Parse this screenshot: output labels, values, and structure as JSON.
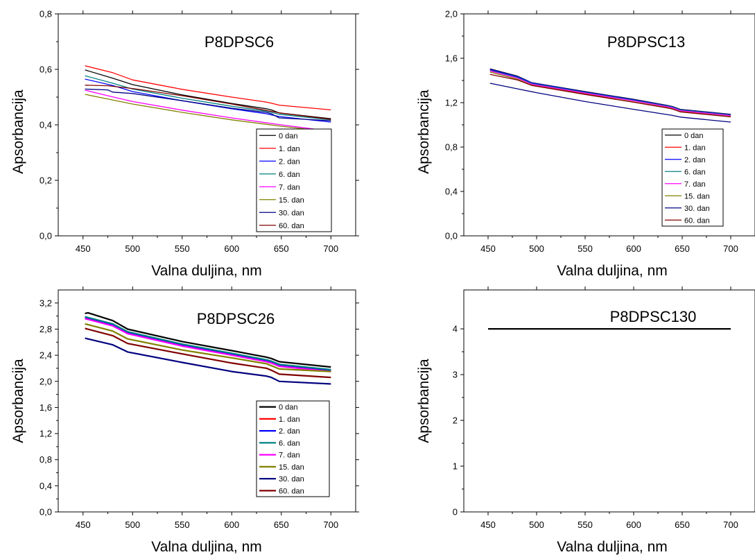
{
  "chart_data": [
    {
      "type": "line",
      "title": "P8DPSC6",
      "xlabel": "Valna duljina, nm",
      "ylabel": "Apsorbancija",
      "xlim": [
        425,
        725
      ],
      "ylim": [
        0,
        0.8
      ],
      "xticks": [
        450,
        500,
        550,
        600,
        650,
        700
      ],
      "yticks": [
        0,
        0.2,
        0.4,
        0.6,
        0.8
      ],
      "ytick_labels": [
        "0,0",
        "0,2",
        "0,4",
        "0,6",
        "0,8"
      ],
      "legend_position": "bottom-right",
      "line_width": 1.3,
      "series": [
        {
          "name": "0 dan",
          "color": "#000000",
          "x": [
            452,
            480,
            500,
            550,
            600,
            635,
            640,
            648,
            700
          ],
          "y": [
            0.598,
            0.568,
            0.545,
            0.508,
            0.477,
            0.458,
            0.454,
            0.443,
            0.422
          ]
        },
        {
          "name": "1. dan",
          "color": "#ff0000",
          "x": [
            452,
            480,
            500,
            550,
            600,
            635,
            640,
            648,
            700
          ],
          "y": [
            0.613,
            0.588,
            0.562,
            0.528,
            0.5,
            0.482,
            0.478,
            0.471,
            0.454
          ]
        },
        {
          "name": "2. dan",
          "color": "#0000ff",
          "x": [
            452,
            480,
            500,
            550,
            600,
            635,
            640,
            648,
            700
          ],
          "y": [
            0.565,
            0.542,
            0.52,
            0.487,
            0.458,
            0.44,
            0.436,
            0.43,
            0.41
          ]
        },
        {
          "name": "6. dan",
          "color": "#008080",
          "x": [
            452,
            480,
            500,
            550,
            600,
            635,
            640,
            648,
            700
          ],
          "y": [
            0.577,
            0.55,
            0.529,
            0.496,
            0.467,
            0.449,
            0.445,
            0.438,
            0.418
          ]
        },
        {
          "name": "7. dan",
          "color": "#ff00ff",
          "x": [
            452,
            475,
            500,
            550,
            600,
            650,
            700
          ],
          "y": [
            0.525,
            0.505,
            0.484,
            0.453,
            0.425,
            0.4,
            0.377
          ]
        },
        {
          "name": "15. dan",
          "color": "#808000",
          "x": [
            452,
            475,
            500,
            550,
            600,
            650,
            700
          ],
          "y": [
            0.51,
            0.493,
            0.475,
            0.445,
            0.418,
            0.395,
            0.375
          ]
        },
        {
          "name": "30. dan",
          "color": "#000080",
          "x": [
            452,
            475,
            480,
            500,
            550,
            600,
            635,
            640,
            648,
            700
          ],
          "y": [
            0.529,
            0.526,
            0.518,
            0.513,
            0.487,
            0.46,
            0.445,
            0.44,
            0.425,
            0.415
          ]
        },
        {
          "name": "60. dan",
          "color": "#800000",
          "x": [
            452,
            475,
            500,
            550,
            600,
            650,
            700
          ],
          "y": [
            0.543,
            0.541,
            0.531,
            0.505,
            0.475,
            0.442,
            0.42
          ]
        }
      ]
    },
    {
      "type": "line",
      "title": "P8DPSC13",
      "xlabel": "Valna duljina, nm",
      "ylabel": "Apsorbancija",
      "xlim": [
        425,
        725
      ],
      "ylim": [
        0,
        2.0
      ],
      "xticks": [
        450,
        500,
        550,
        600,
        650,
        700
      ],
      "yticks": [
        0,
        0.4,
        0.8,
        1.2,
        1.6,
        2.0
      ],
      "ytick_labels": [
        "0,0",
        "0,4",
        "0,8",
        "1,2",
        "1,6",
        "2,0"
      ],
      "legend_position": "bottom-right",
      "line_width": 1.3,
      "series": [
        {
          "name": "0 dan",
          "color": "#000000",
          "x": [
            452,
            480,
            495,
            550,
            600,
            635,
            640,
            648,
            700
          ],
          "y": [
            1.505,
            1.44,
            1.38,
            1.3,
            1.23,
            1.175,
            1.165,
            1.14,
            1.095
          ]
        },
        {
          "name": "1. dan",
          "color": "#ff0000",
          "x": [
            452,
            480,
            495,
            550,
            600,
            635,
            640,
            648,
            700
          ],
          "y": [
            1.495,
            1.425,
            1.365,
            1.28,
            1.205,
            1.155,
            1.145,
            1.12,
            1.075
          ]
        },
        {
          "name": "2. dan",
          "color": "#0000ff",
          "x": [
            452,
            480,
            495,
            550,
            600,
            635,
            640,
            648,
            700
          ],
          "y": [
            1.5,
            1.435,
            1.378,
            1.296,
            1.226,
            1.172,
            1.162,
            1.137,
            1.092
          ]
        },
        {
          "name": "6. dan",
          "color": "#008080",
          "x": [
            452,
            480,
            495,
            550,
            600,
            635,
            640,
            648,
            700
          ],
          "y": [
            1.49,
            1.428,
            1.372,
            1.291,
            1.221,
            1.168,
            1.158,
            1.133,
            1.088
          ]
        },
        {
          "name": "7. dan",
          "color": "#ff00ff",
          "x": [
            452,
            480,
            495,
            550,
            600,
            635,
            640,
            648,
            700
          ],
          "y": [
            1.485,
            1.422,
            1.366,
            1.286,
            1.216,
            1.163,
            1.153,
            1.128,
            1.083
          ]
        },
        {
          "name": "15. dan",
          "color": "#808000",
          "x": [
            452,
            480,
            495,
            550,
            600,
            635,
            640,
            648,
            700
          ],
          "y": [
            1.475,
            1.412,
            1.356,
            1.276,
            1.206,
            1.154,
            1.144,
            1.119,
            1.074
          ]
        },
        {
          "name": "30. dan",
          "color": "#000080",
          "x": [
            452,
            480,
            500,
            550,
            600,
            640,
            648,
            700
          ],
          "y": [
            1.375,
            1.325,
            1.29,
            1.21,
            1.14,
            1.085,
            1.07,
            1.025
          ]
        },
        {
          "name": "60. dan",
          "color": "#800000",
          "x": [
            452,
            480,
            495,
            550,
            600,
            635,
            640,
            648,
            700
          ],
          "y": [
            1.455,
            1.405,
            1.355,
            1.274,
            1.204,
            1.152,
            1.142,
            1.117,
            1.072
          ]
        }
      ]
    },
    {
      "type": "line",
      "title": "P8DPSC26",
      "xlabel": "Valna duljina, nm",
      "ylabel": "Apsorbancija",
      "xlim": [
        425,
        725
      ],
      "ylim": [
        0,
        3.4
      ],
      "xticks": [
        450,
        500,
        550,
        600,
        650,
        700
      ],
      "yticks": [
        0,
        0.4,
        0.8,
        1.2,
        1.6,
        2.0,
        2.4,
        2.8,
        3.2
      ],
      "ytick_labels": [
        "0,0",
        "0,4",
        "0,8",
        "1,2",
        "1,6",
        "2,0",
        "2,4",
        "2,8",
        "3,2"
      ],
      "legend_position": "bottom-right",
      "line_width": 2.2,
      "series": [
        {
          "name": "0 dan",
          "color": "#000000",
          "x": [
            452,
            455,
            480,
            495,
            550,
            600,
            635,
            640,
            648,
            700
          ],
          "y": [
            3.04,
            3.05,
            2.93,
            2.8,
            2.61,
            2.47,
            2.37,
            2.35,
            2.3,
            2.22
          ]
        },
        {
          "name": "1. dan",
          "color": "#ff0000",
          "x": [
            452,
            480,
            495,
            550,
            600,
            635,
            640,
            648,
            700
          ],
          "y": [
            2.98,
            2.87,
            2.75,
            2.56,
            2.42,
            2.32,
            2.3,
            2.25,
            2.17
          ]
        },
        {
          "name": "2. dan",
          "color": "#0000ff",
          "x": [
            452,
            480,
            495,
            550,
            600,
            635,
            640,
            648,
            700
          ],
          "y": [
            2.97,
            2.86,
            2.74,
            2.55,
            2.41,
            2.31,
            2.29,
            2.24,
            2.16
          ]
        },
        {
          "name": "6. dan",
          "color": "#008080",
          "x": [
            452,
            480,
            495,
            550,
            600,
            635,
            640,
            648,
            700
          ],
          "y": [
            2.99,
            2.88,
            2.76,
            2.57,
            2.43,
            2.33,
            2.31,
            2.26,
            2.18
          ]
        },
        {
          "name": "7. dan",
          "color": "#ff00ff",
          "x": [
            452,
            480,
            495,
            550,
            600,
            635,
            640,
            648,
            700
          ],
          "y": [
            2.96,
            2.85,
            2.73,
            2.54,
            2.4,
            2.3,
            2.28,
            2.23,
            2.15
          ]
        },
        {
          "name": "15. dan",
          "color": "#808000",
          "x": [
            452,
            480,
            495,
            550,
            600,
            635,
            640,
            648,
            700
          ],
          "y": [
            2.88,
            2.77,
            2.65,
            2.48,
            2.36,
            2.27,
            2.24,
            2.19,
            2.15
          ]
        },
        {
          "name": "30. dan",
          "color": "#000080",
          "x": [
            452,
            480,
            495,
            550,
            600,
            635,
            640,
            648,
            700
          ],
          "y": [
            2.66,
            2.56,
            2.45,
            2.29,
            2.15,
            2.08,
            2.06,
            2.0,
            1.96
          ]
        },
        {
          "name": "60. dan",
          "color": "#800000",
          "x": [
            452,
            480,
            495,
            550,
            600,
            635,
            640,
            648,
            700
          ],
          "y": [
            2.81,
            2.7,
            2.58,
            2.42,
            2.28,
            2.2,
            2.17,
            2.11,
            2.06
          ]
        }
      ]
    },
    {
      "type": "line",
      "title": "P8DPSC130",
      "xlabel": "Valna duljina, nm",
      "ylabel": "Apsorbancija",
      "xlim": [
        425,
        725
      ],
      "ylim": [
        0,
        4.85
      ],
      "xticks": [
        450,
        500,
        550,
        600,
        650,
        700
      ],
      "yticks": [
        0,
        1,
        2,
        3,
        4
      ],
      "ytick_labels": [
        "0",
        "1",
        "2",
        "3",
        "4"
      ],
      "line_width": 2.2,
      "series": [
        {
          "color": "#000000",
          "x": [
            450,
            700
          ],
          "y": [
            4.0,
            4.0
          ]
        }
      ]
    }
  ]
}
